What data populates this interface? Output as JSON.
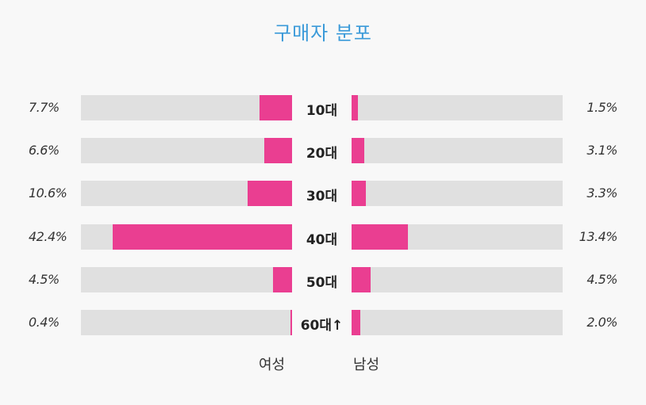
{
  "title": "구매자 분포",
  "chart_data": {
    "type": "bar",
    "orientation": "horizontal-diverging",
    "title": "구매자 분포",
    "categories": [
      "10대",
      "20대",
      "30대",
      "40대",
      "50대",
      "60대↑"
    ],
    "series": [
      {
        "name": "여성",
        "values": [
          7.7,
          6.6,
          10.6,
          42.4,
          4.5,
          0.4
        ],
        "labels": [
          "7.7%",
          "6.6%",
          "10.6%",
          "42.4%",
          "4.5%",
          "0.4%"
        ]
      },
      {
        "name": "남성",
        "values": [
          1.5,
          3.1,
          3.3,
          13.4,
          4.5,
          2.0
        ],
        "labels": [
          "1.5%",
          "3.1%",
          "3.3%",
          "13.4%",
          "4.5%",
          "2.0%"
        ]
      }
    ],
    "xlim": [
      0,
      50
    ],
    "colors": {
      "bar": "#ea3e91",
      "track": "#e0e0e0",
      "title": "#3a9ad9"
    }
  }
}
